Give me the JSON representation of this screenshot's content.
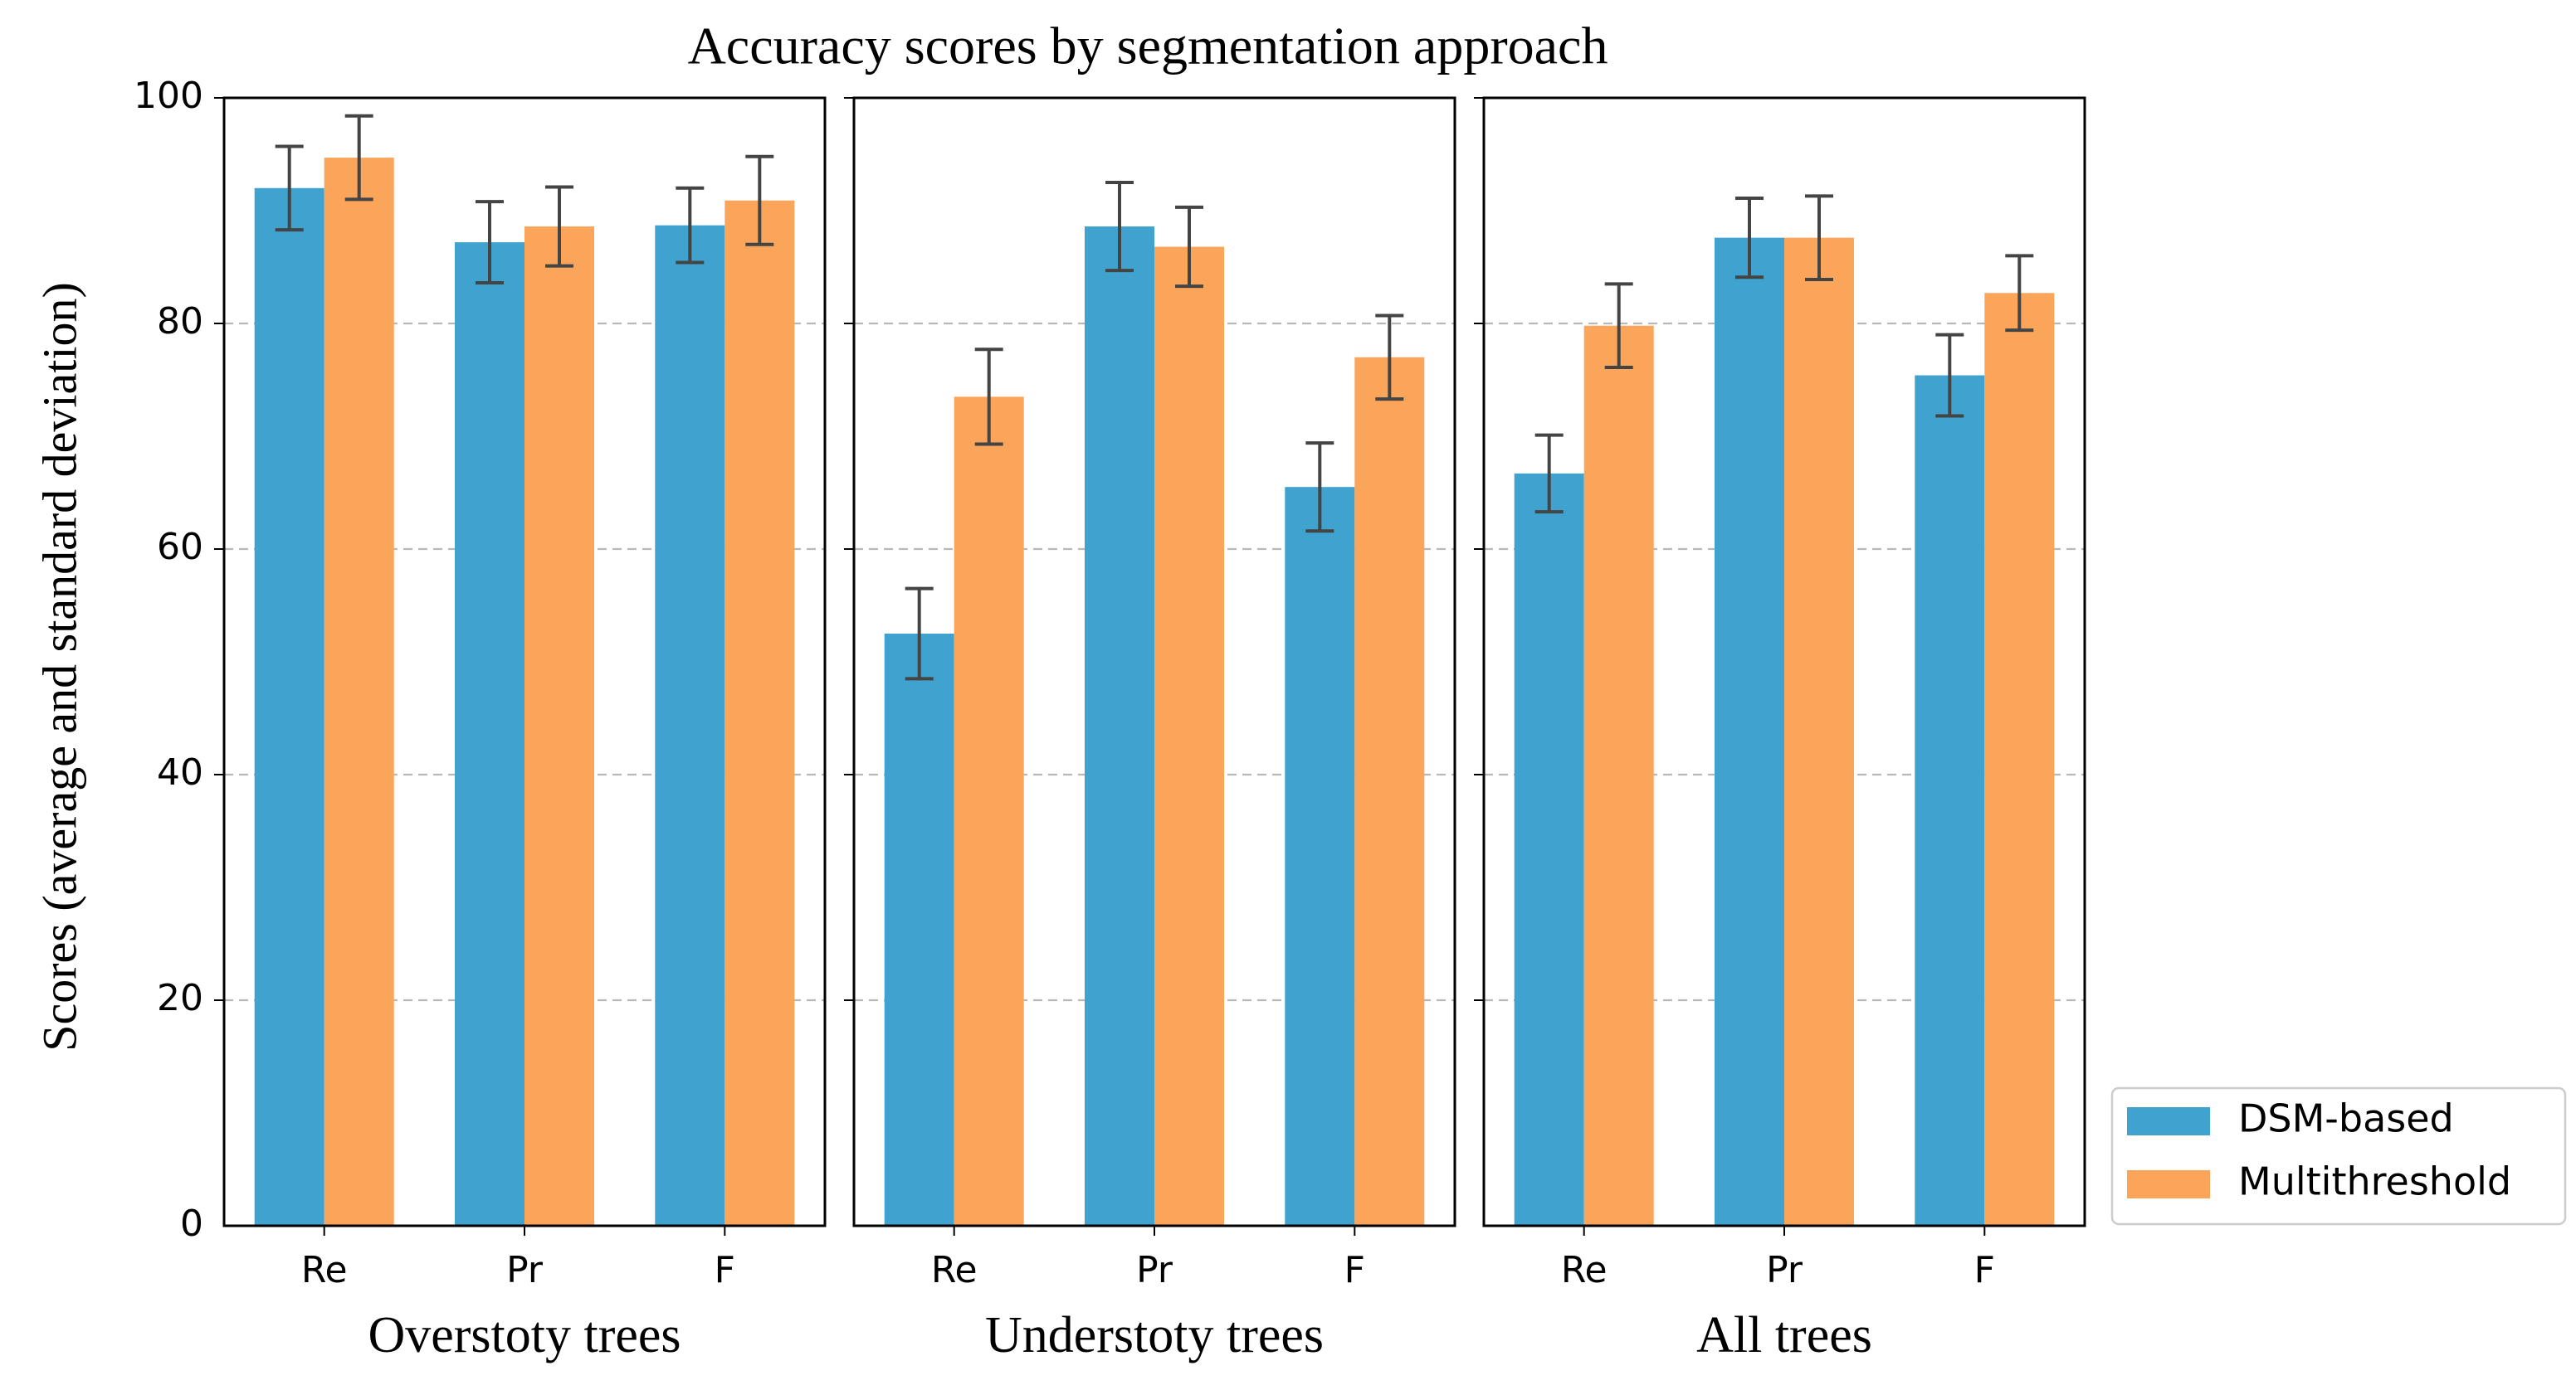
{
  "chart_data": {
    "type": "bar",
    "title": "Accuracy scores by segmentation approach",
    "ylabel": "Scores (average and standard deviation)",
    "ylim": [
      0,
      100
    ],
    "yticks": [
      0,
      20,
      40,
      60,
      80,
      100
    ],
    "grid": true,
    "grid_axis": "y",
    "legend_position": "lower-right-outside",
    "categories": [
      "Re",
      "Pr",
      "F"
    ],
    "colors": {
      "DSM-based": "#3fa2cf",
      "Multithreshold": "#fba55b",
      "errorbar": "#444444",
      "grid": "#b8b8b8"
    },
    "legend": [
      "DSM-based",
      "Multithreshold"
    ],
    "panels": [
      {
        "xlabel": "Overstoty trees",
        "series": [
          {
            "name": "DSM-based",
            "values": [
              92.0,
              87.2,
              88.7
            ],
            "errors": [
              3.7,
              3.6,
              3.3
            ]
          },
          {
            "name": "Multithreshold",
            "values": [
              94.7,
              88.6,
              90.9
            ],
            "errors": [
              3.7,
              3.5,
              3.9
            ]
          }
        ]
      },
      {
        "xlabel": "Understoty trees",
        "series": [
          {
            "name": "DSM-based",
            "values": [
              52.5,
              88.6,
              65.5
            ],
            "errors": [
              4.0,
              3.9,
              3.9
            ]
          },
          {
            "name": "Multithreshold",
            "values": [
              73.5,
              86.8,
              77.0
            ],
            "errors": [
              4.2,
              3.5,
              3.7
            ]
          }
        ]
      },
      {
        "xlabel": "All trees",
        "series": [
          {
            "name": "DSM-based",
            "values": [
              66.7,
              87.6,
              75.4
            ],
            "errors": [
              3.4,
              3.5,
              3.6
            ]
          },
          {
            "name": "Multithreshold",
            "values": [
              79.8,
              87.6,
              82.7
            ],
            "errors": [
              3.7,
              3.7,
              3.3
            ]
          }
        ]
      }
    ]
  }
}
